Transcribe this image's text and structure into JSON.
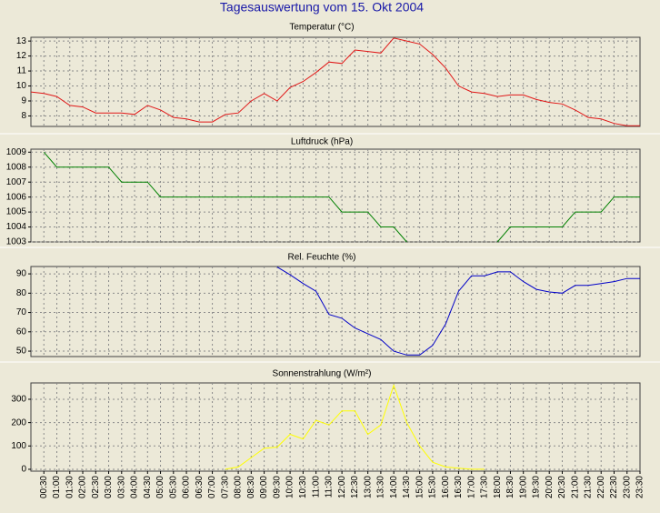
{
  "title": "Tagesauswertung vom 15. Okt 2004",
  "chart_data": [
    {
      "type": "line",
      "title": "Temperatur (°C)",
      "ylim": [
        7.3,
        13.25
      ],
      "yticks": [
        8,
        9,
        10,
        11,
        12,
        13
      ],
      "grid": true,
      "series": [
        {
          "name": "Temperatur",
          "color": "#e01818",
          "values": [
            9.6,
            9.5,
            9.3,
            8.7,
            8.6,
            8.2,
            8.2,
            8.2,
            8.1,
            8.7,
            8.4,
            7.9,
            7.8,
            7.6,
            7.6,
            8.1,
            8.2,
            9.0,
            9.5,
            9.0,
            9.9,
            10.3,
            10.9,
            11.6,
            11.5,
            12.4,
            12.3,
            12.2,
            13.2,
            13.0,
            12.8,
            12.1,
            11.2,
            10.0,
            9.6,
            9.5,
            9.3,
            9.4,
            9.4,
            9.1,
            8.9,
            8.8,
            8.4,
            7.9,
            7.8,
            7.5,
            7.35,
            7.35
          ]
        }
      ]
    },
    {
      "type": "line",
      "title": "Luftdruck (hPa)",
      "ylim": [
        1003,
        1009.2
      ],
      "yticks": [
        1003,
        1004,
        1005,
        1006,
        1007,
        1008,
        1009
      ],
      "grid": true,
      "series": [
        {
          "name": "Luftdruck",
          "color": "#008000",
          "values": [
            null,
            1009,
            1008,
            1008,
            1008,
            1008,
            1008,
            1007,
            1007,
            1007,
            1006,
            1006,
            1006,
            1006,
            1006,
            1006,
            1006,
            1006,
            1006,
            1006,
            1006,
            1006,
            1006,
            1006,
            1005,
            1005,
            1005,
            1004,
            1004,
            1003,
            null,
            null,
            null,
            null,
            null,
            null,
            1003,
            1004,
            1004,
            1004,
            1004,
            1004,
            1005,
            1005,
            1005,
            1006,
            1006,
            1006
          ]
        }
      ]
    },
    {
      "type": "line",
      "title": "Rel. Feuchte (%)",
      "ylim": [
        47.2,
        93.8
      ],
      "yticks": [
        50,
        60,
        70,
        80,
        90
      ],
      "grid": true,
      "series": [
        {
          "name": "Rel. Feuchte",
          "color": "#0000c8",
          "values": [
            null,
            null,
            null,
            null,
            null,
            null,
            null,
            null,
            null,
            null,
            null,
            null,
            null,
            null,
            null,
            null,
            null,
            null,
            null,
            93.5,
            89.5,
            85,
            81,
            69,
            67,
            62,
            59,
            56,
            50,
            48,
            48,
            53,
            64,
            81,
            89,
            89,
            91,
            91,
            86,
            82,
            80.6,
            80,
            84,
            84,
            85,
            86,
            87.6,
            87.6
          ]
        }
      ]
    },
    {
      "type": "line",
      "title": "Sonnenstrahlung (W/m²)",
      "ylim": [
        -8,
        370
      ],
      "yticks": [
        0,
        100,
        200,
        300
      ],
      "grid": true,
      "categories": [
        null,
        "00:30",
        "01:00",
        "01:30",
        "02:00",
        "02:30",
        "03:00",
        "03:30",
        "04:00",
        "04:30",
        "05:00",
        "05:30",
        "06:00",
        "06:30",
        "07:00",
        "07:30",
        "08:00",
        "08:30",
        "09:00",
        "09:30",
        "10:00",
        "10:30",
        "11:00",
        "11:30",
        "12:00",
        "12:30",
        "13:00",
        "13:30",
        "14:00",
        "14:30",
        "15:00",
        "15:30",
        "16:00",
        "16:30",
        "17:00",
        "17:30",
        "18:00",
        "18:30",
        "19:00",
        "19:30",
        "20:00",
        "20:30",
        "21:00",
        "21:30",
        "22:00",
        "22:30",
        "23:00",
        "23:30"
      ],
      "series": [
        {
          "name": "Sonnenstrahlung",
          "color": "#ffff00",
          "values": [
            null,
            null,
            null,
            null,
            null,
            null,
            null,
            null,
            null,
            null,
            null,
            null,
            null,
            null,
            null,
            0,
            10,
            50,
            90,
            95,
            150,
            130,
            210,
            190,
            250,
            250,
            150,
            190,
            360,
            200,
            100,
            30,
            10,
            5,
            0,
            0,
            null,
            null,
            null,
            null,
            null,
            null,
            null,
            null,
            null,
            null,
            null,
            null
          ]
        }
      ]
    }
  ]
}
